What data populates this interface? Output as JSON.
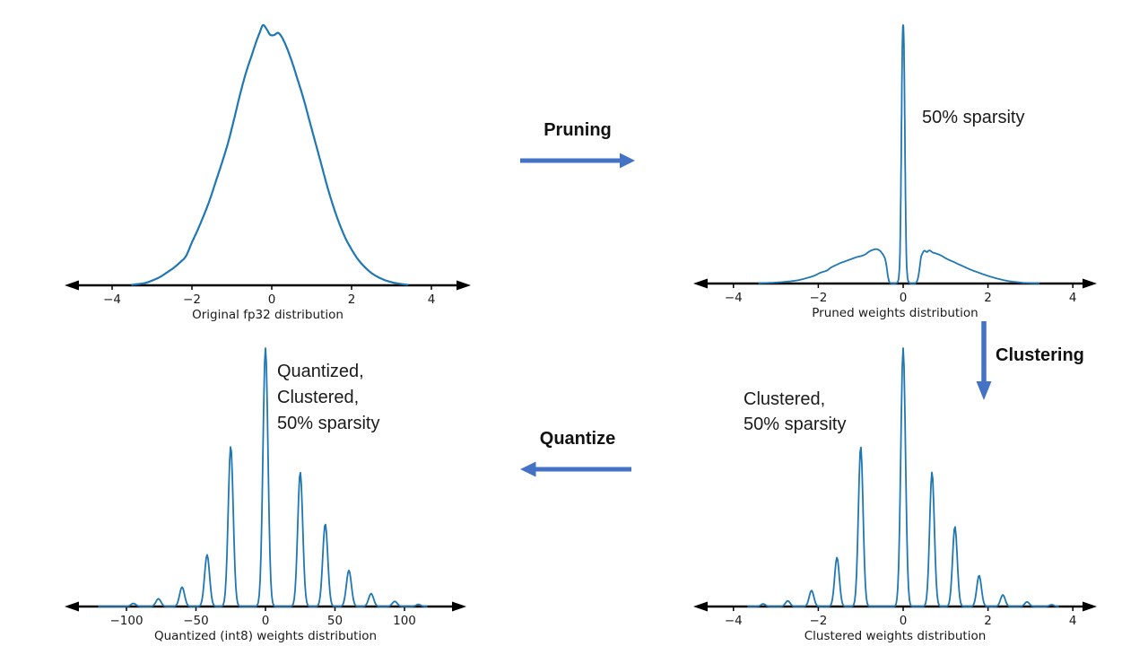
{
  "colors": {
    "curve": "#1f77b4",
    "process_arrow": "#4472c4",
    "axis": "#000000",
    "text": "#1a1a1a",
    "background": "#ffffff"
  },
  "process_arrows": {
    "pruning": {
      "label": "Pruning",
      "direction": "right"
    },
    "clustering": {
      "label": "Clustering",
      "direction": "down"
    },
    "quantize": {
      "label": "Quantize",
      "direction": "left"
    }
  },
  "annotations": {
    "pruned": {
      "lines": [
        "50% sparsity"
      ]
    },
    "clustered": {
      "lines": [
        "Clustered,",
        "50% sparsity"
      ]
    },
    "quantized": {
      "lines": [
        "Quantized,",
        "Clustered,",
        "50% sparsity"
      ]
    }
  },
  "chart_data": [
    {
      "id": "original",
      "type": "line",
      "title": "",
      "xlabel": "Original fp32 distribution",
      "ylabel": "",
      "y_unit": "relative density (max = 1)",
      "ylim": [
        0,
        1.05
      ],
      "xlim": [
        -5.2,
        5.0
      ],
      "grid": false,
      "ticks": [
        {
          "value": -4,
          "label": "−4"
        },
        {
          "value": -2,
          "label": "−2"
        },
        {
          "value": 0,
          "label": "0"
        },
        {
          "value": 2,
          "label": "2"
        },
        {
          "value": 4,
          "label": "4"
        }
      ],
      "curve": {
        "kind": "points",
        "points": [
          [
            -3.5,
            0.002
          ],
          [
            -3.2,
            0.008
          ],
          [
            -3.0,
            0.018
          ],
          [
            -2.8,
            0.032
          ],
          [
            -2.6,
            0.052
          ],
          [
            -2.45,
            0.068
          ],
          [
            -2.3,
            0.088
          ],
          [
            -2.15,
            0.112
          ],
          [
            -2.0,
            0.165
          ],
          [
            -1.85,
            0.215
          ],
          [
            -1.7,
            0.27
          ],
          [
            -1.55,
            0.33
          ],
          [
            -1.4,
            0.4
          ],
          [
            -1.25,
            0.47
          ],
          [
            -1.1,
            0.545
          ],
          [
            -0.95,
            0.635
          ],
          [
            -0.8,
            0.73
          ],
          [
            -0.65,
            0.815
          ],
          [
            -0.5,
            0.885
          ],
          [
            -0.38,
            0.94
          ],
          [
            -0.3,
            0.972
          ],
          [
            -0.22,
            1.0
          ],
          [
            -0.13,
            0.985
          ],
          [
            -0.04,
            0.963
          ],
          [
            0.06,
            0.962
          ],
          [
            0.16,
            0.97
          ],
          [
            0.26,
            0.952
          ],
          [
            0.38,
            0.912
          ],
          [
            0.5,
            0.862
          ],
          [
            0.65,
            0.79
          ],
          [
            0.8,
            0.715
          ],
          [
            0.95,
            0.63
          ],
          [
            1.1,
            0.545
          ],
          [
            1.25,
            0.46
          ],
          [
            1.4,
            0.375
          ],
          [
            1.55,
            0.3
          ],
          [
            1.7,
            0.235
          ],
          [
            1.85,
            0.18
          ],
          [
            2.0,
            0.138
          ],
          [
            2.15,
            0.102
          ],
          [
            2.3,
            0.075
          ],
          [
            2.45,
            0.053
          ],
          [
            2.6,
            0.037
          ],
          [
            2.8,
            0.022
          ],
          [
            3.0,
            0.012
          ],
          [
            3.2,
            0.006
          ],
          [
            3.4,
            0.002
          ]
        ]
      }
    },
    {
      "id": "pruned",
      "type": "line",
      "title": "",
      "xlabel": "Pruned weights distribution",
      "ylabel": "",
      "y_unit": "relative density (max = 1)",
      "ylim": [
        0,
        1.05
      ],
      "xlim": [
        -4.95,
        4.6
      ],
      "grid": false,
      "annotation": "50% sparsity",
      "ticks": [
        {
          "value": -4,
          "label": "−4"
        },
        {
          "value": -2,
          "label": "−2"
        },
        {
          "value": 0,
          "label": "0"
        },
        {
          "value": 2,
          "label": "2"
        },
        {
          "value": 4,
          "label": "4"
        }
      ],
      "curve": {
        "kind": "points",
        "points": [
          [
            -3.4,
            0.001
          ],
          [
            -3.1,
            0.003
          ],
          [
            -2.9,
            0.005
          ],
          [
            -2.7,
            0.008
          ],
          [
            -2.5,
            0.012
          ],
          [
            -2.3,
            0.02
          ],
          [
            -2.1,
            0.03
          ],
          [
            -1.95,
            0.042
          ],
          [
            -1.8,
            0.05
          ],
          [
            -1.7,
            0.062
          ],
          [
            -1.6,
            0.07
          ],
          [
            -1.5,
            0.078
          ],
          [
            -1.4,
            0.084
          ],
          [
            -1.3,
            0.09
          ],
          [
            -1.2,
            0.096
          ],
          [
            -1.1,
            0.102
          ],
          [
            -1.0,
            0.106
          ],
          [
            -0.9,
            0.112
          ],
          [
            -0.8,
            0.124
          ],
          [
            -0.7,
            0.131
          ],
          [
            -0.62,
            0.133
          ],
          [
            -0.55,
            0.127
          ],
          [
            -0.5,
            0.118
          ],
          [
            -0.46,
            0.108
          ],
          [
            -0.42,
            0.092
          ],
          [
            -0.39,
            0.065
          ],
          [
            -0.36,
            0.03
          ],
          [
            -0.33,
            0.008
          ],
          [
            -0.3,
            0.002
          ],
          [
            -0.26,
            0
          ],
          [
            -0.21,
            0
          ],
          [
            -0.17,
            0.001
          ],
          [
            -0.13,
            0.006
          ],
          [
            -0.1,
            0.03
          ],
          [
            -0.075,
            0.12
          ],
          [
            -0.05,
            0.42
          ],
          [
            -0.03,
            0.78
          ],
          [
            -0.015,
            0.95
          ],
          [
            0,
            1.0
          ],
          [
            0.015,
            0.95
          ],
          [
            0.03,
            0.78
          ],
          [
            0.05,
            0.42
          ],
          [
            0.075,
            0.12
          ],
          [
            0.1,
            0.03
          ],
          [
            0.13,
            0.006
          ],
          [
            0.17,
            0.001
          ],
          [
            0.21,
            0
          ],
          [
            0.26,
            0
          ],
          [
            0.3,
            0.003
          ],
          [
            0.34,
            0.015
          ],
          [
            0.38,
            0.05
          ],
          [
            0.42,
            0.1
          ],
          [
            0.46,
            0.118
          ],
          [
            0.5,
            0.127
          ],
          [
            0.56,
            0.122
          ],
          [
            0.62,
            0.128
          ],
          [
            0.7,
            0.12
          ],
          [
            0.8,
            0.115
          ],
          [
            0.9,
            0.108
          ],
          [
            1.0,
            0.098
          ],
          [
            1.1,
            0.09
          ],
          [
            1.2,
            0.083
          ],
          [
            1.3,
            0.075
          ],
          [
            1.45,
            0.064
          ],
          [
            1.6,
            0.053
          ],
          [
            1.75,
            0.044
          ],
          [
            1.9,
            0.035
          ],
          [
            2.05,
            0.027
          ],
          [
            2.2,
            0.02
          ],
          [
            2.35,
            0.014
          ],
          [
            2.5,
            0.009
          ],
          [
            2.7,
            0.005
          ],
          [
            2.9,
            0.002
          ],
          [
            3.2,
            0.001
          ]
        ]
      }
    },
    {
      "id": "quantized",
      "type": "line",
      "title": "",
      "xlabel": "Quantized (int8) weights distribution",
      "ylabel": "",
      "y_unit": "relative density (max = 1)",
      "ylim": [
        0,
        1.05
      ],
      "xlim": [
        -145,
        145
      ],
      "grid": false,
      "annotation": "Quantized, Clustered, 50% sparsity",
      "ticks": [
        {
          "value": -100,
          "label": "−100"
        },
        {
          "value": -50,
          "label": "−50"
        },
        {
          "value": 0,
          "label": "0"
        },
        {
          "value": 50,
          "label": "50"
        },
        {
          "value": 100,
          "label": "100"
        }
      ],
      "curve": {
        "kind": "peaks",
        "sigma": 1.8,
        "range": [
          -120,
          116
        ],
        "peaks": [
          [
            -95,
            0.012
          ],
          [
            -77,
            0.03
          ],
          [
            -60,
            0.075
          ],
          [
            -42,
            0.2
          ],
          [
            -25,
            0.62
          ],
          [
            0,
            1.0
          ],
          [
            25,
            0.52
          ],
          [
            43,
            0.32
          ],
          [
            60,
            0.14
          ],
          [
            76,
            0.05
          ],
          [
            93,
            0.02
          ],
          [
            110,
            0.008
          ]
        ]
      }
    },
    {
      "id": "clustered",
      "type": "line",
      "title": "",
      "xlabel": "Clustered weights distribution",
      "ylabel": "",
      "y_unit": "relative density (max = 1)",
      "ylim": [
        0,
        1.05
      ],
      "xlim": [
        -4.95,
        4.6
      ],
      "grid": false,
      "annotation": "Clustered, 50% sparsity",
      "ticks": [
        {
          "value": -4,
          "label": "−4"
        },
        {
          "value": -2,
          "label": "−2"
        },
        {
          "value": 0,
          "label": "0"
        },
        {
          "value": 2,
          "label": "2"
        },
        {
          "value": 4,
          "label": "4"
        }
      ],
      "curve": {
        "kind": "peaks",
        "sigma": 0.055,
        "range": [
          -3.65,
          3.65
        ],
        "peaks": [
          [
            -3.3,
            0.01
          ],
          [
            -2.72,
            0.022
          ],
          [
            -2.16,
            0.062
          ],
          [
            -1.56,
            0.19
          ],
          [
            -1.0,
            0.62
          ],
          [
            0.0,
            1.0
          ],
          [
            0.68,
            0.52
          ],
          [
            1.22,
            0.31
          ],
          [
            1.79,
            0.12
          ],
          [
            2.35,
            0.045
          ],
          [
            2.92,
            0.018
          ],
          [
            3.5,
            0.007
          ]
        ]
      }
    }
  ]
}
